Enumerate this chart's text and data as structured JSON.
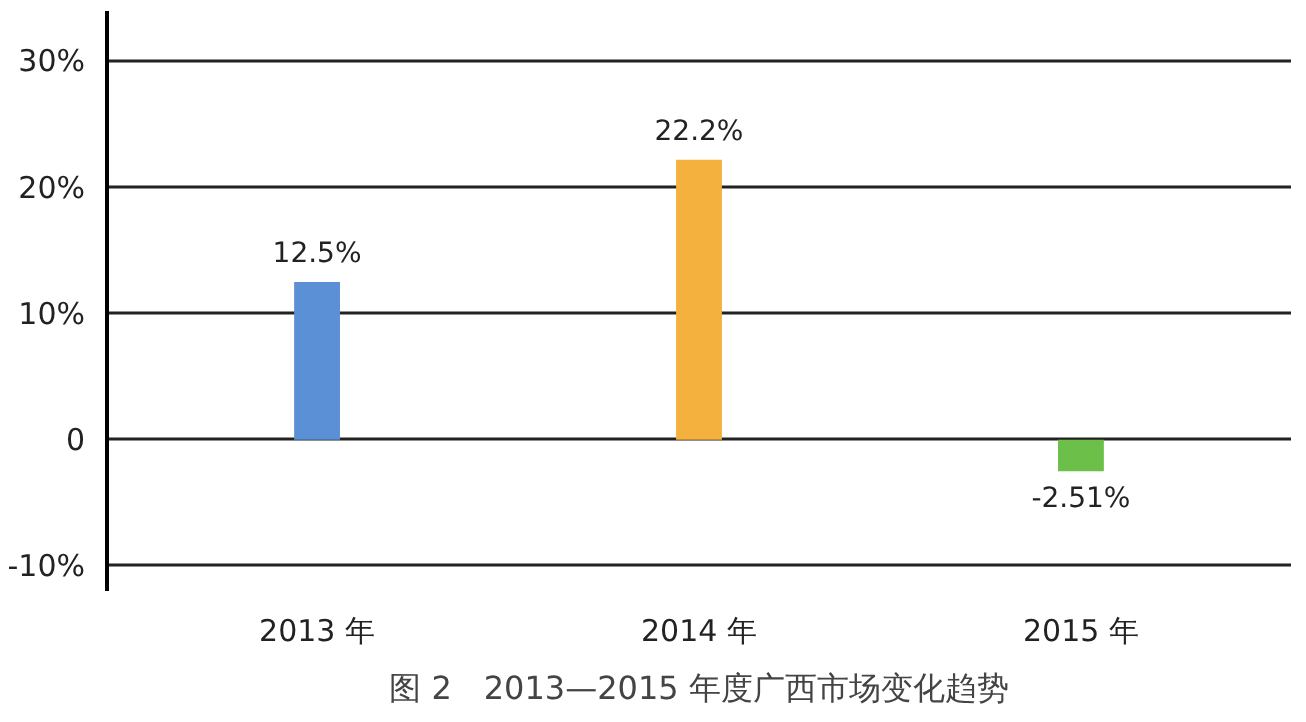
{
  "chart_data": {
    "type": "bar",
    "title": "图 2　2013—2015 年度广西市场变化趋势",
    "categories": [
      "2013 年",
      "2014 年",
      "2015 年"
    ],
    "values": [
      12.5,
      22.2,
      -2.51
    ],
    "colors": [
      "#5b8fd6",
      "#f5b13d",
      "#6cc04a"
    ],
    "value_labels": [
      "12.5%",
      "22.2%",
      "-2.51%"
    ],
    "ylim": [
      -12,
      34
    ],
    "yticks": [
      {
        "value": -10,
        "label": "-10%"
      },
      {
        "value": 0,
        "label": "0"
      },
      {
        "value": 10,
        "label": "10%"
      },
      {
        "value": 20,
        "label": "20%"
      },
      {
        "value": 30,
        "label": "30%"
      }
    ],
    "grid": "y"
  }
}
